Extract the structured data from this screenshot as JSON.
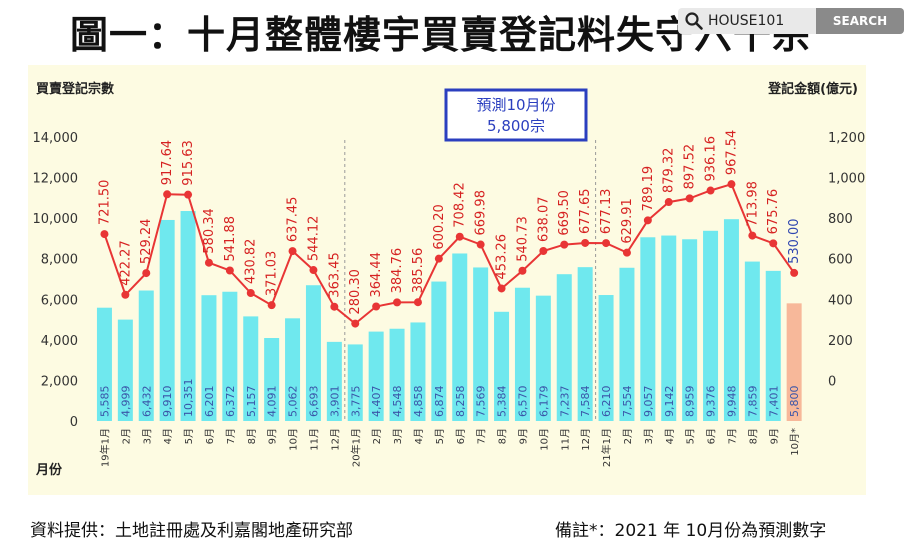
{
  "title": "圖一：十月整體樓宇買賣登記料失守六千宗",
  "search": {
    "text": "HOUSE101",
    "button": "SEARCH"
  },
  "footer": {
    "source": "資料提供：土地註冊處及利嘉閣地產研究部",
    "note": "備註*：2021 年 10月份為預測數字"
  },
  "colors": {
    "bar": "#6fe8ee",
    "forecast_bar": "#f7b89a",
    "line": "#e83535",
    "amount_label": "#d62222",
    "count_label": "#3a55a8",
    "forecast_amount_label": "#2f46b0",
    "callout_border": "#2b3fbf",
    "panel": "#fdfbe2"
  },
  "chart_data": {
    "type": "bar",
    "ylabel": "買賣登記宗數",
    "y2label": "登記金額(億元)",
    "xlabel": "月份",
    "ylim": [
      0,
      14000
    ],
    "y2lim": [
      -200,
      1200
    ],
    "yticks": [
      "0",
      "2,000",
      "4,000",
      "6,000",
      "8,000",
      "10,000",
      "12,000",
      "14,000"
    ],
    "y2ticks": [
      "0",
      "200",
      "400",
      "600",
      "800",
      "1,000",
      "1,200"
    ],
    "grid": false,
    "callout": {
      "line1": "預測10月份",
      "line2": "5,800宗"
    },
    "categories": [
      "19年1月",
      "2月",
      "3月",
      "4月",
      "5月",
      "6月",
      "7月",
      "8月",
      "9月",
      "10月",
      "11月",
      "12月",
      "20年1月",
      "2月",
      "3月",
      "4月",
      "5月",
      "6月",
      "7月",
      "8月",
      "9月",
      "10月",
      "11月",
      "12月",
      "21年1月",
      "2月",
      "3月",
      "4月",
      "5月",
      "6月",
      "7月",
      "8月",
      "9月",
      "10月*"
    ],
    "series": [
      {
        "type": "bar",
        "values": [
          5585,
          4999,
          6432,
          9910,
          10351,
          6201,
          6372,
          5157,
          4091,
          5062,
          6693,
          3901,
          3775,
          4407,
          4548,
          4858,
          6874,
          8258,
          7569,
          5384,
          6570,
          6179,
          7237,
          7584,
          6210,
          7554,
          9057,
          9142,
          8959,
          9376,
          9948,
          7859,
          7401,
          5800
        ],
        "labels": [
          "5,585",
          "4,999",
          "6,432",
          "9,910",
          "10,351",
          "6,201",
          "6,372",
          "5,157",
          "4,091",
          "5,062",
          "6,693",
          "3,901",
          "3,775",
          "4,407",
          "4,548",
          "4,858",
          "6,874",
          "8,258",
          "7,569",
          "5,384",
          "6,570",
          "6,179",
          "7,237",
          "7,584",
          "6,210",
          "7,554",
          "9,057",
          "9,142",
          "8,959",
          "9,376",
          "9,948",
          "7,859",
          "7,401",
          "5,800"
        ]
      },
      {
        "type": "line",
        "values": [
          721.5,
          422.27,
          529.24,
          917.64,
          915.63,
          580.34,
          541.88,
          430.82,
          371.03,
          637.45,
          544.12,
          363.45,
          280.3,
          364.44,
          384.76,
          385.56,
          600.2,
          708.42,
          669.98,
          453.26,
          540.73,
          638.07,
          669.5,
          677.65,
          677.13,
          629.91,
          789.19,
          879.32,
          897.52,
          936.16,
          967.54,
          713.98,
          675.76,
          530.0
        ],
        "labels": [
          "721.50",
          "422.27",
          "529.24",
          "917.64",
          "915.63",
          "580.34",
          "541.88",
          "430.82",
          "371.03",
          "637.45",
          "544.12",
          "363.45",
          "280.30",
          "364.44",
          "384.76",
          "385.56",
          "600.20",
          "708.42",
          "669.98",
          "453.26",
          "540.73",
          "638.07",
          "669.50",
          "677.65",
          "677.13",
          "629.91",
          "789.19",
          "879.32",
          "897.52",
          "936.16",
          "967.54",
          "713.98",
          "675.76",
          "530.00"
        ]
      }
    ]
  }
}
